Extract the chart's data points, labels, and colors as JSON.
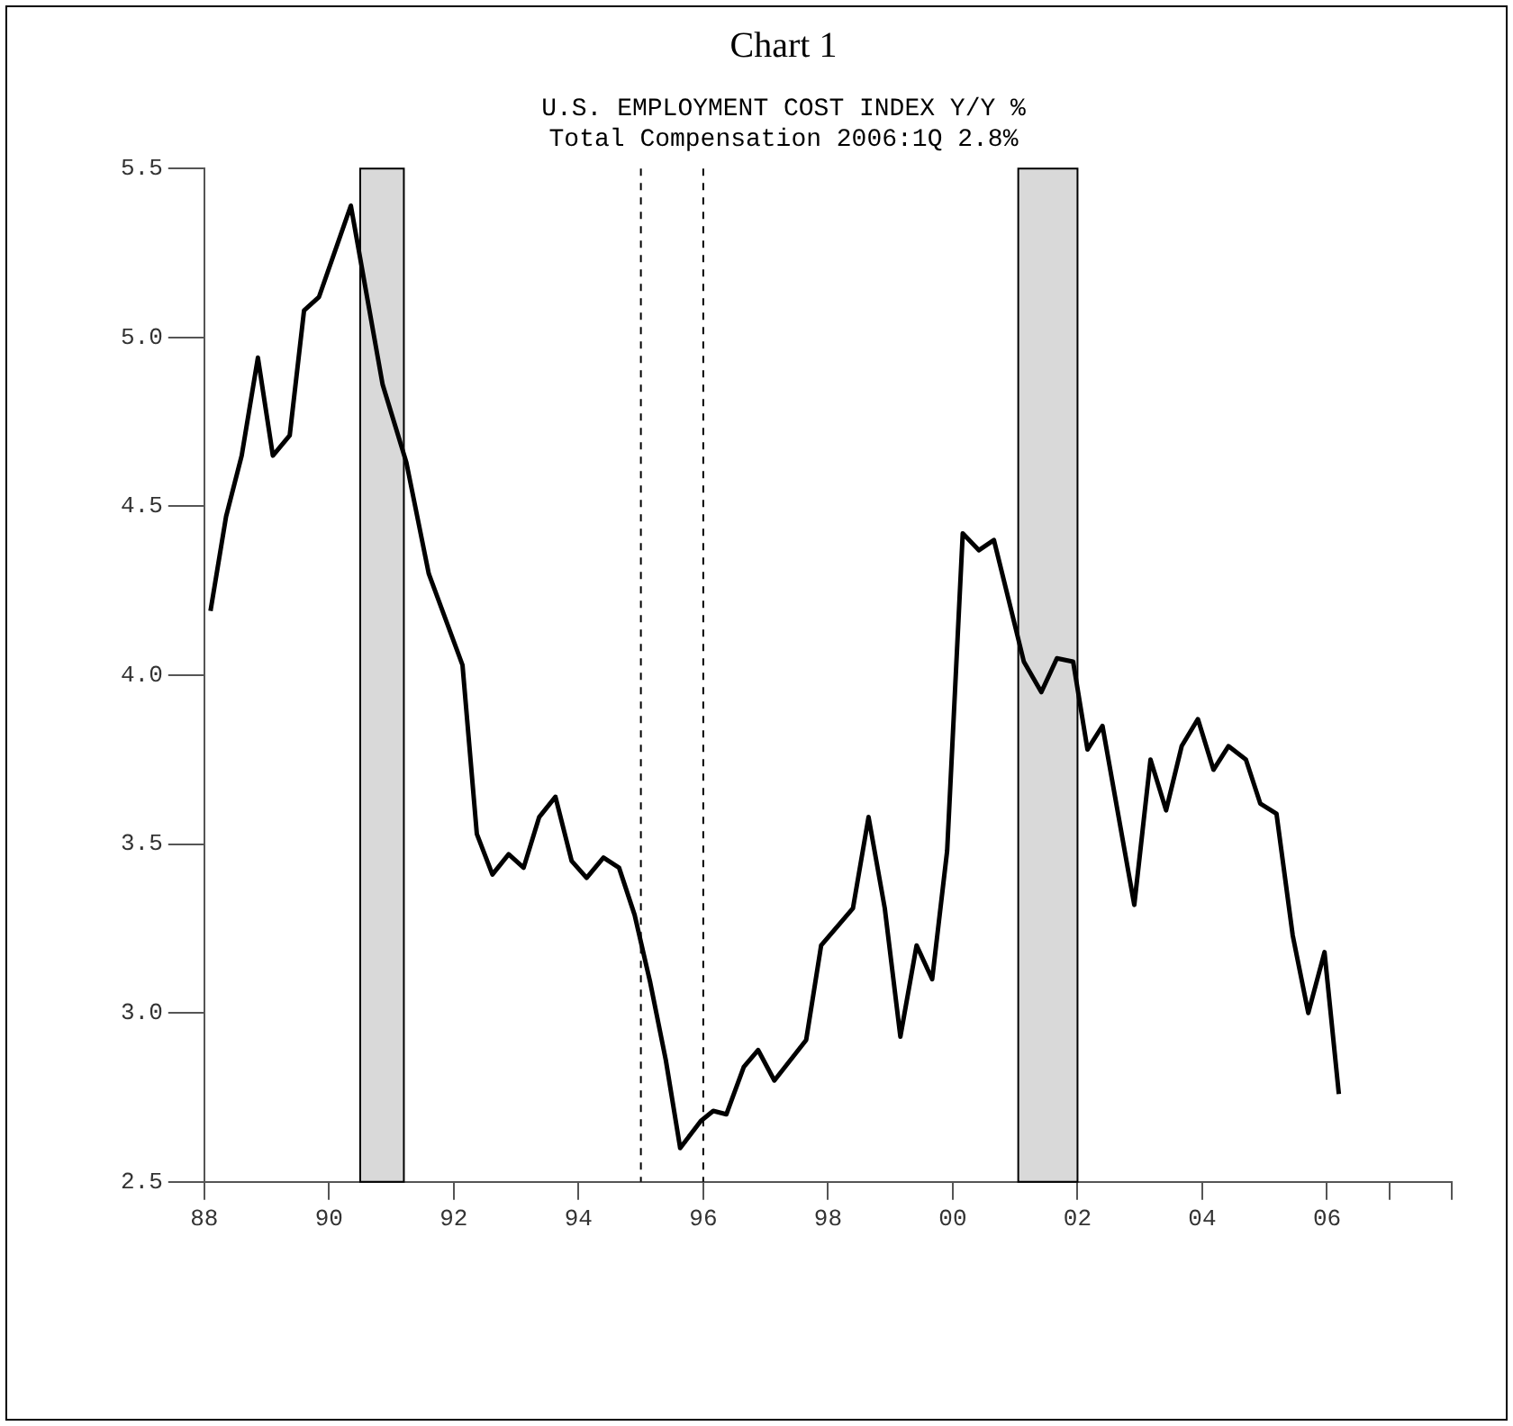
{
  "chart_data": {
    "type": "line",
    "title": "Chart 1",
    "subtitle": "U.S. EMPLOYMENT COST INDEX Y/Y %\nTotal Compensation 2006:1Q 2.8%",
    "x": [
      1988.1,
      1988.35,
      1988.6,
      1988.86,
      1989.1,
      1989.37,
      1989.6,
      1989.84,
      1990.35,
      1990.86,
      1991.24,
      1991.6,
      1992.14,
      1992.37,
      1992.62,
      1992.88,
      1993.12,
      1993.37,
      1993.63,
      1993.89,
      1994.13,
      1994.4,
      1994.65,
      1994.9,
      1995.15,
      1995.4,
      1995.63,
      1995.96,
      1996.16,
      1996.37,
      1996.65,
      1996.88,
      1997.14,
      1997.65,
      1997.89,
      1998.4,
      1998.65,
      1998.91,
      1999.16,
      1999.42,
      1999.67,
      1999.91,
      2000.16,
      2000.42,
      2000.66,
      2000.9,
      2001.14,
      2001.42,
      2001.67,
      2001.93,
      2002.16,
      2002.4,
      2002.91,
      2003.17,
      2003.42,
      2003.67,
      2003.93,
      2004.18,
      2004.42,
      2004.7,
      2004.93,
      2005.19,
      2005.45,
      2005.7,
      2005.96,
      2006.19
    ],
    "series": [
      {
        "color": "#000000",
        "values": [
          4.19,
          4.47,
          4.65,
          4.94,
          4.65,
          4.71,
          5.08,
          5.12,
          5.39,
          4.86,
          4.63,
          4.3,
          4.03,
          3.53,
          3.41,
          3.47,
          3.43,
          3.58,
          3.64,
          3.45,
          3.4,
          3.46,
          3.43,
          3.29,
          3.09,
          2.86,
          2.6,
          2.68,
          2.71,
          2.7,
          2.84,
          2.89,
          2.8,
          2.92,
          3.2,
          3.31,
          3.58,
          3.31,
          2.93,
          3.2,
          3.1,
          3.48,
          4.42,
          4.37,
          4.4,
          4.22,
          4.04,
          3.95,
          4.05,
          4.04,
          3.78,
          3.85,
          3.32,
          3.75,
          3.6,
          3.79,
          3.87,
          3.72,
          3.79,
          3.75,
          3.62,
          3.59,
          3.23,
          3.0,
          3.18,
          2.76
        ]
      }
    ],
    "xlim": [
      1988,
      2008
    ],
    "xticks": [
      {
        "value": 1988,
        "label": "88"
      },
      {
        "value": 1990,
        "label": "90"
      },
      {
        "value": 1992,
        "label": "92"
      },
      {
        "value": 1994,
        "label": "94"
      },
      {
        "value": 1996,
        "label": "96"
      },
      {
        "value": 1998,
        "label": "98"
      },
      {
        "value": 2000,
        "label": "00"
      },
      {
        "value": 2002,
        "label": "02"
      },
      {
        "value": 2004,
        "label": "04"
      },
      {
        "value": 2006,
        "label": "06"
      },
      {
        "value": 2007,
        "label": null
      },
      {
        "value": 2008,
        "label": null
      }
    ],
    "ylim": [
      2.5,
      5.5
    ],
    "yticks": [
      {
        "value": 2.5,
        "label": "2.5"
      },
      {
        "value": 3.0,
        "label": "3.0"
      },
      {
        "value": 3.5,
        "label": "3.5"
      },
      {
        "value": 4.0,
        "label": "4.0"
      },
      {
        "value": 4.5,
        "label": "4.5"
      },
      {
        "value": 5.0,
        "label": "5.0"
      },
      {
        "value": 5.5,
        "label": "5.5"
      }
    ],
    "bands": [
      {
        "axis": "x",
        "from": 1990.5,
        "to": 1991.2,
        "color": "#d9d9d9"
      },
      {
        "axis": "x",
        "from": 2001.05,
        "to": 2002.0,
        "color": "#d9d9d9"
      }
    ],
    "ref_lines": [
      {
        "axis": "x",
        "value": 1995,
        "color": "#000000",
        "line_style": "dashed"
      },
      {
        "axis": "x",
        "value": 1996,
        "color": "#000000",
        "line_style": "dashed"
      }
    ],
    "grid": false,
    "legend": false,
    "marker": "none",
    "line_style": "solid"
  }
}
